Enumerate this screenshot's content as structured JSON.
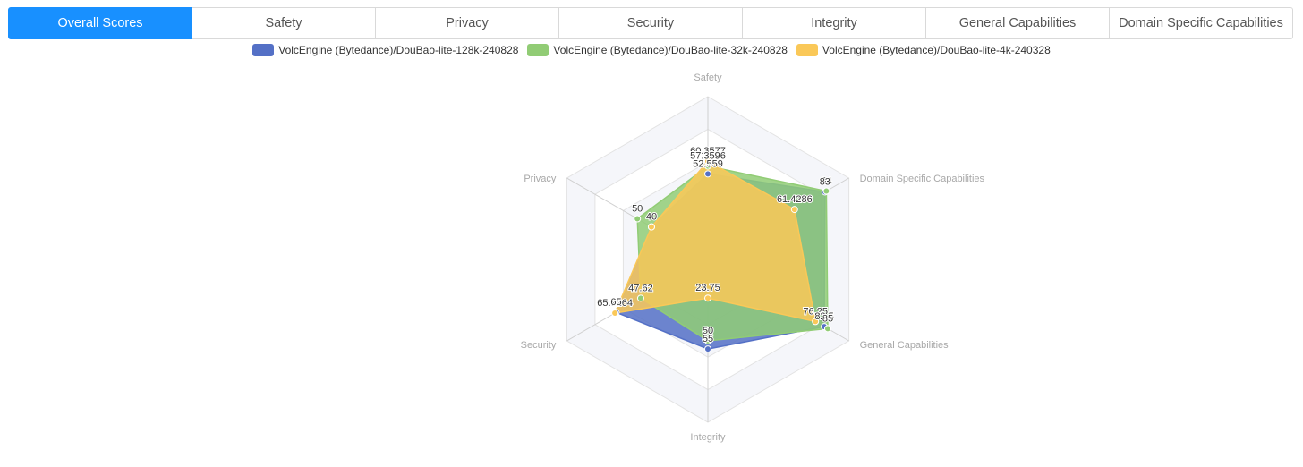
{
  "tabs": [
    {
      "label": "Overall Scores",
      "active": true
    },
    {
      "label": "Safety",
      "active": false
    },
    {
      "label": "Privacy",
      "active": false
    },
    {
      "label": "Security",
      "active": false
    },
    {
      "label": "Integrity",
      "active": false
    },
    {
      "label": "General Capabilities",
      "active": false
    },
    {
      "label": "Domain Specific Capabilities",
      "active": false
    }
  ],
  "chart_data": {
    "type": "radar",
    "axes": [
      "Safety",
      "Domain Specific Capabilities",
      "General Capabilities",
      "Integrity",
      "Security",
      "Privacy"
    ],
    "max": 100,
    "series": [
      {
        "name": "VolcEngine (Bytedance)/DouBao-lite-128k-240828",
        "color": "#5470c6",
        "values": [
          52.559,
          83,
          82.5,
          55,
          65,
          40
        ]
      },
      {
        "name": "VolcEngine (Bytedance)/DouBao-lite-32k-240828",
        "color": "#91cc75",
        "values": [
          57.3596,
          84,
          85,
          50,
          47.62,
          50
        ]
      },
      {
        "name": "VolcEngine (Bytedance)/DouBao-lite-4k-240328",
        "color": "#fac858",
        "values": [
          60.3577,
          61.4286,
          76.25,
          23.75,
          65.9264,
          40
        ]
      }
    ],
    "data_labels": [
      {
        "series": 2,
        "axis": 0,
        "text": "60.3577"
      },
      {
        "series": 1,
        "axis": 0,
        "text": "57.3596"
      },
      {
        "series": 0,
        "axis": 0,
        "text": "52.559"
      },
      {
        "series": 1,
        "axis": 1,
        "text": "84"
      },
      {
        "series": 0,
        "axis": 1,
        "text": "83"
      },
      {
        "series": 2,
        "axis": 1,
        "text": "61.4286"
      },
      {
        "series": 2,
        "axis": 2,
        "text": "76.25"
      },
      {
        "series": 0,
        "axis": 2,
        "text": "82.5"
      },
      {
        "series": 1,
        "axis": 2,
        "text": "85"
      },
      {
        "series": 1,
        "axis": 3,
        "text": "50"
      },
      {
        "series": 0,
        "axis": 3,
        "text": "55"
      },
      {
        "series": 2,
        "axis": 3,
        "text": "23.75"
      },
      {
        "series": 1,
        "axis": 4,
        "text": "47.62"
      },
      {
        "series": 2,
        "axis": 4,
        "text": "65.9264"
      },
      {
        "series": 0,
        "axis": 4,
        "text": "65"
      },
      {
        "series": 1,
        "axis": 5,
        "text": "50"
      },
      {
        "series": 2,
        "axis": 5,
        "text": "40"
      }
    ],
    "legend_position": "top-center",
    "split_areas": true
  }
}
